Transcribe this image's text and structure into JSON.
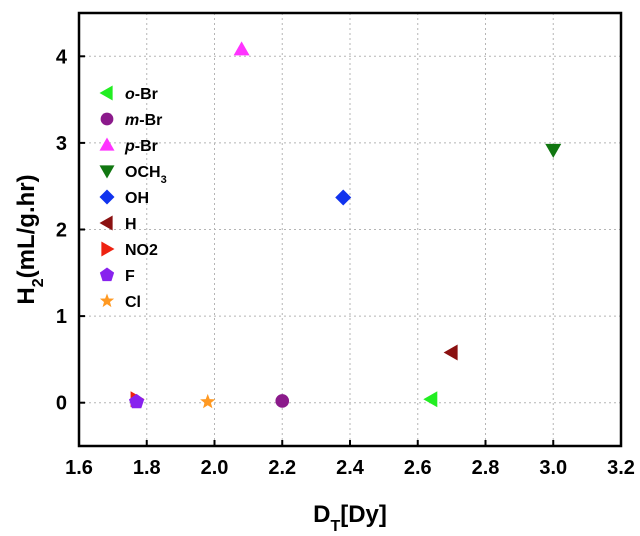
{
  "chart_data": {
    "type": "scatter",
    "title": "",
    "xlabel": {
      "main": "D",
      "sub": "T",
      "rest": "[Dy]"
    },
    "ylabel": {
      "main": "H",
      "sub": "2",
      "rest": "(mL/g.hr)"
    },
    "xlim": [
      1.6,
      3.2
    ],
    "ylim": [
      -0.5,
      4.5
    ],
    "xticks": [
      "1.6",
      "1.8",
      "2.0",
      "2.2",
      "2.4",
      "2.6",
      "2.8",
      "3.0",
      "3.2"
    ],
    "yticks": [
      "0",
      "1",
      "2",
      "3",
      "4"
    ],
    "grid": true,
    "legend_position": "top-left",
    "series": [
      {
        "name_parts": [
          {
            "t": "o",
            "italic": true
          },
          {
            "t": "-Br"
          }
        ],
        "marker": "triangle-left",
        "color": "#22ee22",
        "x": 2.64,
        "y": 0.04
      },
      {
        "name_parts": [
          {
            "t": "m",
            "italic": true
          },
          {
            "t": "-Br"
          }
        ],
        "marker": "circle",
        "color": "#8b1a8b",
        "x": 2.2,
        "y": 0.02
      },
      {
        "name_parts": [
          {
            "t": "p",
            "italic": true
          },
          {
            "t": "-Br"
          }
        ],
        "marker": "triangle-up",
        "color": "#ff33ff",
        "x": 2.08,
        "y": 4.08
      },
      {
        "name_parts": [
          {
            "t": "OCH"
          },
          {
            "t": "3",
            "sub": true
          }
        ],
        "marker": "triangle-down",
        "color": "#117711",
        "x": 3.0,
        "y": 2.92
      },
      {
        "name_parts": [
          {
            "t": "OH"
          }
        ],
        "marker": "diamond",
        "color": "#1133ee",
        "x": 2.38,
        "y": 2.37
      },
      {
        "name_parts": [
          {
            "t": "H"
          }
        ],
        "marker": "triangle-left",
        "color": "#8b1111",
        "x": 2.7,
        "y": 0.58
      },
      {
        "name_parts": [
          {
            "t": "NO2"
          }
        ],
        "marker": "triangle-right",
        "color": "#ee2211",
        "x": 1.77,
        "y": 0.04
      },
      {
        "name_parts": [
          {
            "t": "F"
          }
        ],
        "marker": "pentagon",
        "color": "#8822ee",
        "x": 1.77,
        "y": 0.01
      },
      {
        "name_parts": [
          {
            "t": "Cl"
          }
        ],
        "marker": "star",
        "color": "#ff9922",
        "x": 1.98,
        "y": 0.01
      }
    ]
  }
}
